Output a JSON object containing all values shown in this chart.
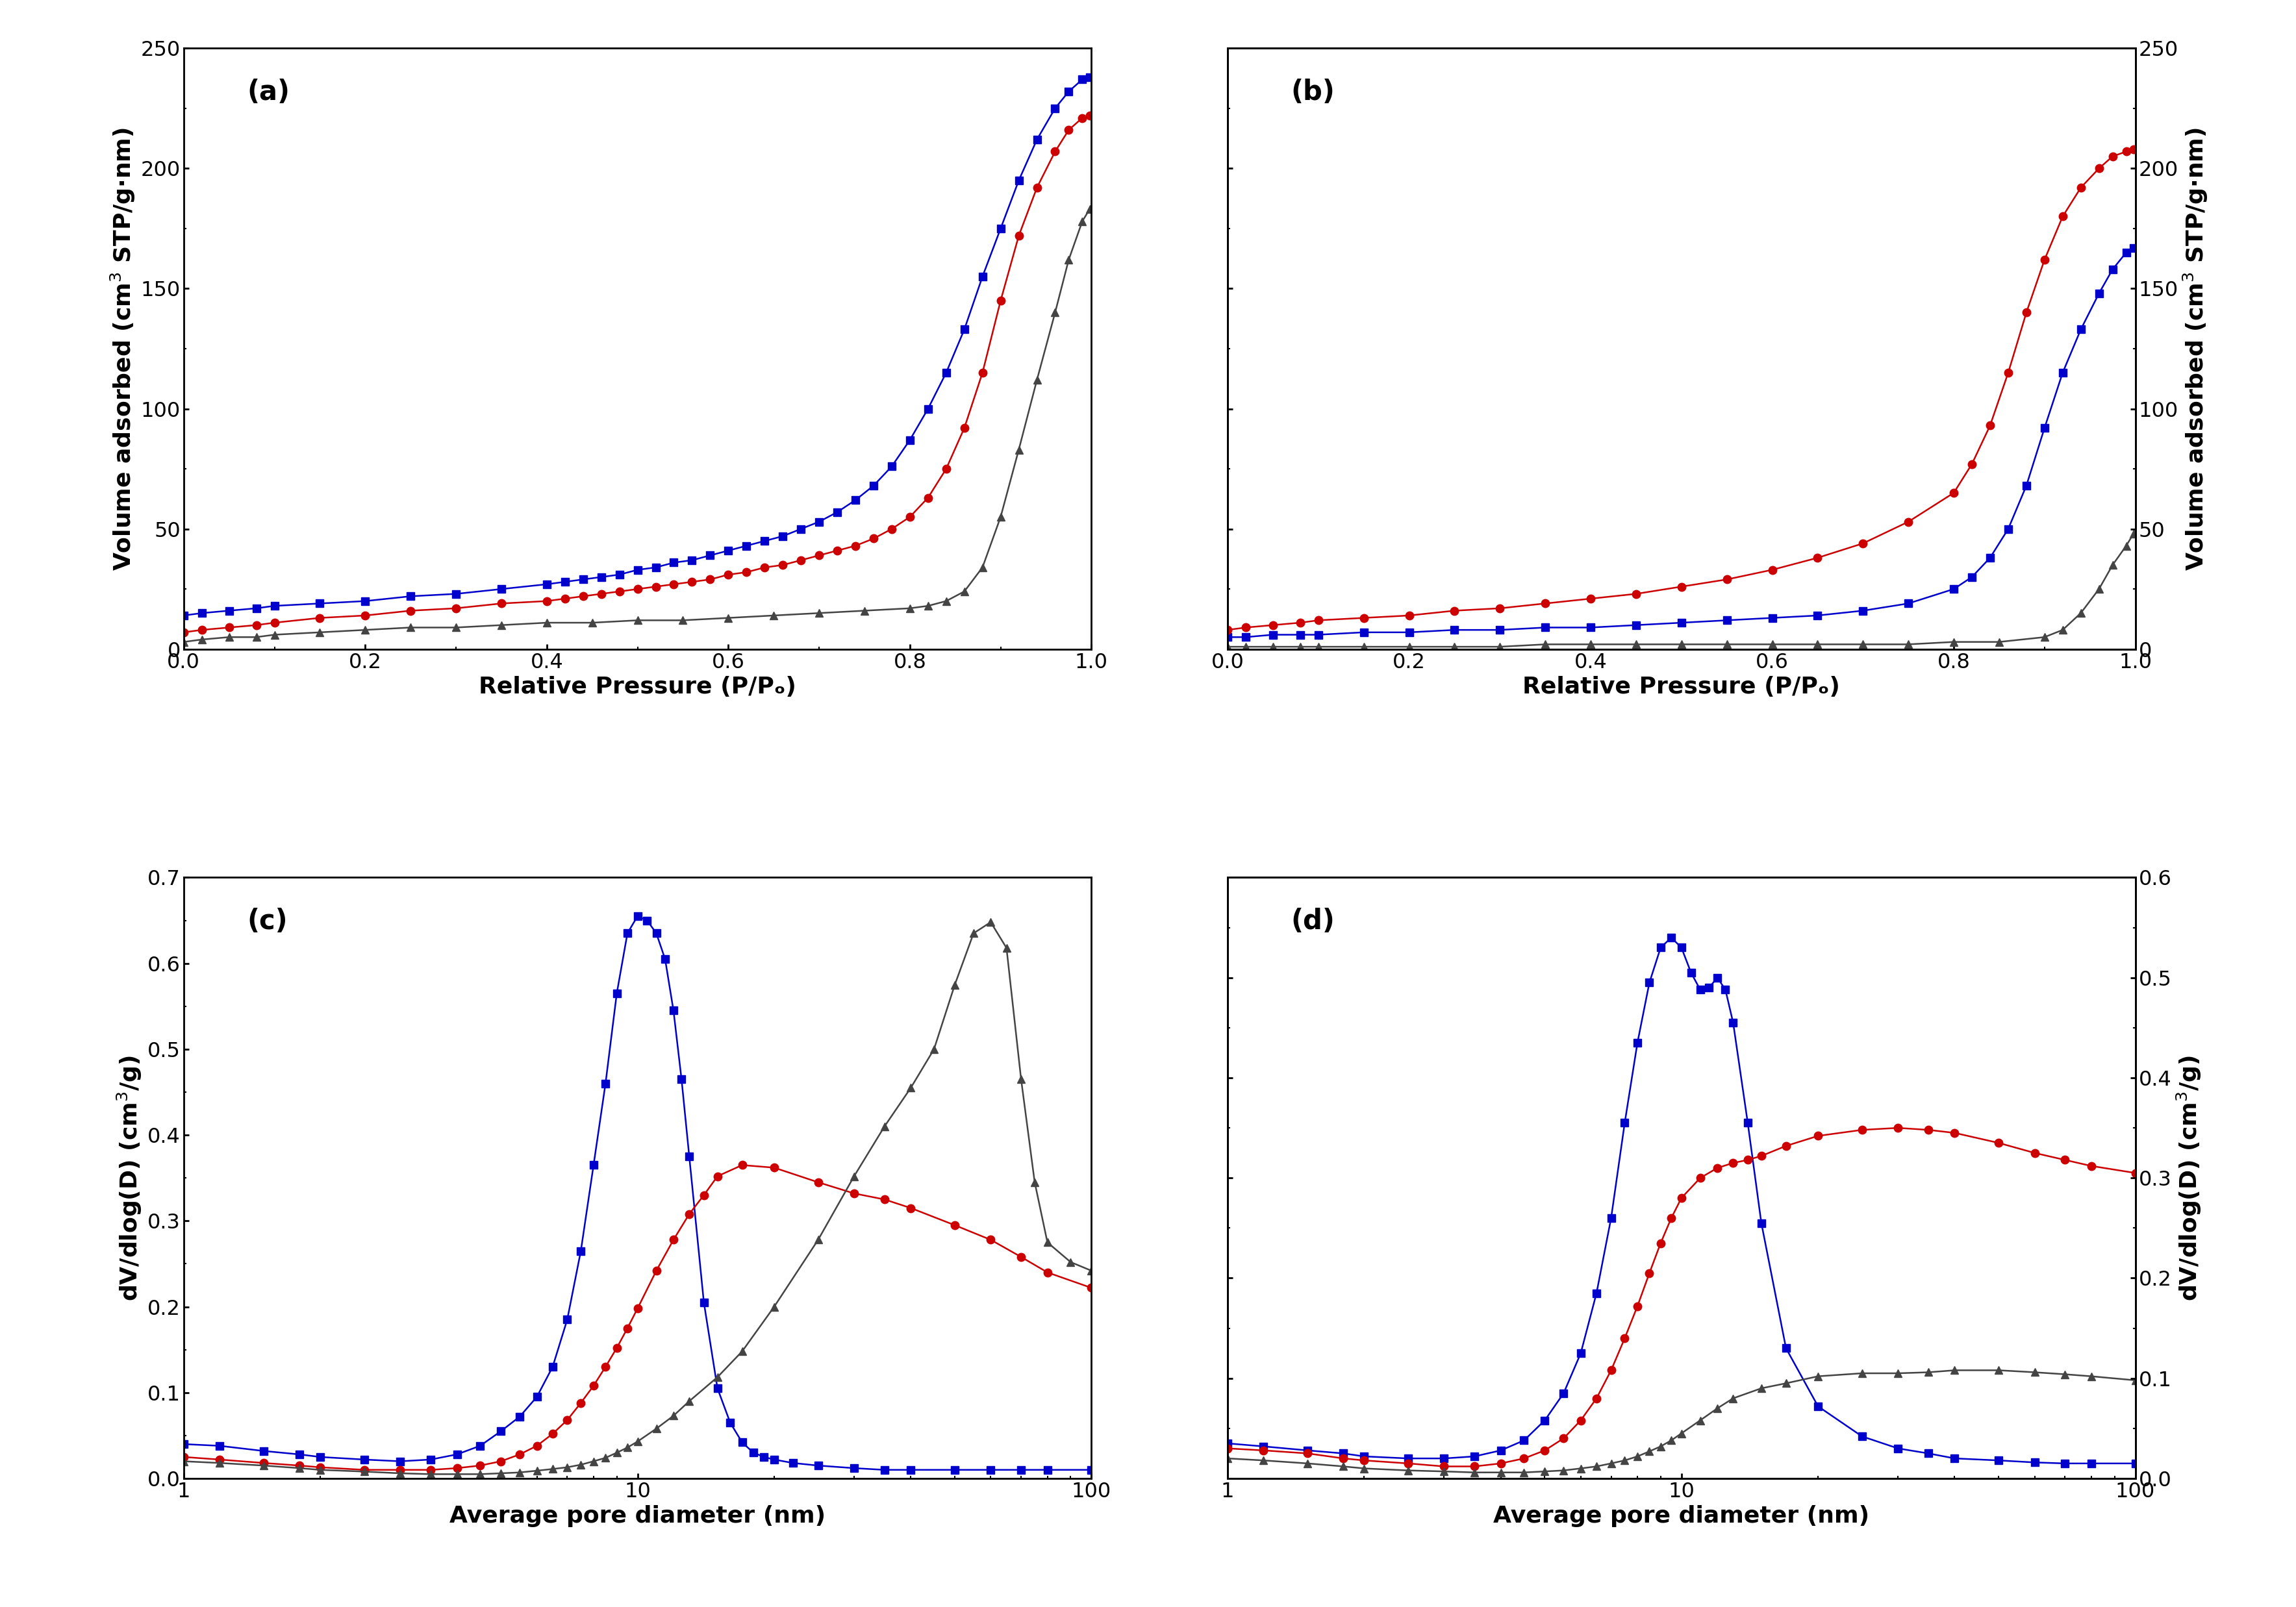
{
  "panel_labels": [
    "(a)",
    "(b)",
    "(c)",
    "(d)"
  ],
  "ax_xlabel_ab": "Relative Pressure (P/Pₒ)",
  "ax_xlabel_cd": "Average pore diameter (nm)",
  "colors": {
    "blue": "#0000cc",
    "red": "#cc0000",
    "gray": "#444444"
  },
  "panel_a": {
    "blue_x": [
      0.0,
      0.02,
      0.05,
      0.08,
      0.1,
      0.15,
      0.2,
      0.25,
      0.3,
      0.35,
      0.4,
      0.42,
      0.44,
      0.46,
      0.48,
      0.5,
      0.52,
      0.54,
      0.56,
      0.58,
      0.6,
      0.62,
      0.64,
      0.66,
      0.68,
      0.7,
      0.72,
      0.74,
      0.76,
      0.78,
      0.8,
      0.82,
      0.84,
      0.86,
      0.88,
      0.9,
      0.92,
      0.94,
      0.96,
      0.975,
      0.99,
      0.998
    ],
    "blue_y": [
      14,
      15,
      16,
      17,
      18,
      19,
      20,
      22,
      23,
      25,
      27,
      28,
      29,
      30,
      31,
      33,
      34,
      36,
      37,
      39,
      41,
      43,
      45,
      47,
      50,
      53,
      57,
      62,
      68,
      76,
      87,
      100,
      115,
      133,
      155,
      175,
      195,
      212,
      225,
      232,
      237,
      238
    ],
    "red_x": [
      0.0,
      0.02,
      0.05,
      0.08,
      0.1,
      0.15,
      0.2,
      0.25,
      0.3,
      0.35,
      0.4,
      0.42,
      0.44,
      0.46,
      0.48,
      0.5,
      0.52,
      0.54,
      0.56,
      0.58,
      0.6,
      0.62,
      0.64,
      0.66,
      0.68,
      0.7,
      0.72,
      0.74,
      0.76,
      0.78,
      0.8,
      0.82,
      0.84,
      0.86,
      0.88,
      0.9,
      0.92,
      0.94,
      0.96,
      0.975,
      0.99,
      0.998
    ],
    "red_y": [
      7,
      8,
      9,
      10,
      11,
      13,
      14,
      16,
      17,
      19,
      20,
      21,
      22,
      23,
      24,
      25,
      26,
      27,
      28,
      29,
      31,
      32,
      34,
      35,
      37,
      39,
      41,
      43,
      46,
      50,
      55,
      63,
      75,
      92,
      115,
      145,
      172,
      192,
      207,
      216,
      221,
      222
    ],
    "gray_x": [
      0.0,
      0.02,
      0.05,
      0.08,
      0.1,
      0.15,
      0.2,
      0.25,
      0.3,
      0.35,
      0.4,
      0.45,
      0.5,
      0.55,
      0.6,
      0.65,
      0.7,
      0.75,
      0.8,
      0.82,
      0.84,
      0.86,
      0.88,
      0.9,
      0.92,
      0.94,
      0.96,
      0.975,
      0.99,
      0.998
    ],
    "gray_y": [
      3,
      4,
      5,
      5,
      6,
      7,
      8,
      9,
      9,
      10,
      11,
      11,
      12,
      12,
      13,
      14,
      15,
      16,
      17,
      18,
      20,
      24,
      34,
      55,
      83,
      112,
      140,
      162,
      178,
      183
    ],
    "ylim": [
      0,
      250
    ],
    "xlim": [
      0.0,
      1.0
    ],
    "yticks": [
      0,
      50,
      100,
      150,
      200,
      250
    ]
  },
  "panel_b": {
    "blue_x": [
      0.0,
      0.02,
      0.05,
      0.08,
      0.1,
      0.15,
      0.2,
      0.25,
      0.3,
      0.35,
      0.4,
      0.45,
      0.5,
      0.55,
      0.6,
      0.65,
      0.7,
      0.75,
      0.8,
      0.82,
      0.84,
      0.86,
      0.88,
      0.9,
      0.92,
      0.94,
      0.96,
      0.975,
      0.99,
      0.998
    ],
    "blue_y": [
      5,
      5,
      6,
      6,
      6,
      7,
      7,
      8,
      8,
      9,
      9,
      10,
      11,
      12,
      13,
      14,
      16,
      19,
      25,
      30,
      38,
      50,
      68,
      92,
      115,
      133,
      148,
      158,
      165,
      167
    ],
    "red_x": [
      0.0,
      0.02,
      0.05,
      0.08,
      0.1,
      0.15,
      0.2,
      0.25,
      0.3,
      0.35,
      0.4,
      0.45,
      0.5,
      0.55,
      0.6,
      0.65,
      0.7,
      0.75,
      0.8,
      0.82,
      0.84,
      0.86,
      0.88,
      0.9,
      0.92,
      0.94,
      0.96,
      0.975,
      0.99,
      0.998
    ],
    "red_y": [
      8,
      9,
      10,
      11,
      12,
      13,
      14,
      16,
      17,
      19,
      21,
      23,
      26,
      29,
      33,
      38,
      44,
      53,
      65,
      77,
      93,
      115,
      140,
      162,
      180,
      192,
      200,
      205,
      207,
      208
    ],
    "gray_x": [
      0.0,
      0.02,
      0.05,
      0.08,
      0.1,
      0.15,
      0.2,
      0.25,
      0.3,
      0.35,
      0.4,
      0.45,
      0.5,
      0.55,
      0.6,
      0.65,
      0.7,
      0.75,
      0.8,
      0.85,
      0.9,
      0.92,
      0.94,
      0.96,
      0.975,
      0.99,
      0.998
    ],
    "gray_y": [
      1,
      1,
      1,
      1,
      1,
      1,
      1,
      1,
      1,
      2,
      2,
      2,
      2,
      2,
      2,
      2,
      2,
      2,
      3,
      3,
      5,
      8,
      15,
      25,
      35,
      43,
      48
    ],
    "ylim": [
      0,
      250
    ],
    "xlim": [
      0.0,
      1.0
    ],
    "yticks": [
      0,
      50,
      100,
      150,
      200,
      250
    ]
  },
  "panel_c": {
    "blue_x": [
      1.0,
      1.2,
      1.5,
      1.8,
      2.0,
      2.5,
      3.0,
      3.5,
      4.0,
      4.5,
      5.0,
      5.5,
      6.0,
      6.5,
      7.0,
      7.5,
      8.0,
      8.5,
      9.0,
      9.5,
      10.0,
      10.5,
      11.0,
      11.5,
      12.0,
      12.5,
      13.0,
      14.0,
      15.0,
      16.0,
      17.0,
      18.0,
      19.0,
      20.0,
      22.0,
      25.0,
      30.0,
      35.0,
      40.0,
      50.0,
      60.0,
      70.0,
      80.0,
      100.0
    ],
    "blue_y": [
      0.04,
      0.038,
      0.032,
      0.028,
      0.025,
      0.022,
      0.02,
      0.022,
      0.028,
      0.038,
      0.055,
      0.072,
      0.095,
      0.13,
      0.185,
      0.265,
      0.365,
      0.46,
      0.565,
      0.635,
      0.655,
      0.65,
      0.635,
      0.605,
      0.545,
      0.465,
      0.375,
      0.205,
      0.105,
      0.065,
      0.042,
      0.03,
      0.025,
      0.022,
      0.018,
      0.015,
      0.012,
      0.01,
      0.01,
      0.01,
      0.01,
      0.01,
      0.01,
      0.01
    ],
    "red_x": [
      1.0,
      1.2,
      1.5,
      1.8,
      2.0,
      2.5,
      3.0,
      3.5,
      4.0,
      4.5,
      5.0,
      5.5,
      6.0,
      6.5,
      7.0,
      7.5,
      8.0,
      8.5,
      9.0,
      9.5,
      10.0,
      11.0,
      12.0,
      13.0,
      14.0,
      15.0,
      17.0,
      20.0,
      25.0,
      30.0,
      35.0,
      40.0,
      50.0,
      60.0,
      70.0,
      80.0,
      100.0
    ],
    "red_y": [
      0.025,
      0.022,
      0.018,
      0.015,
      0.013,
      0.01,
      0.01,
      0.01,
      0.012,
      0.015,
      0.02,
      0.028,
      0.038,
      0.052,
      0.068,
      0.088,
      0.108,
      0.13,
      0.152,
      0.175,
      0.198,
      0.242,
      0.278,
      0.308,
      0.33,
      0.352,
      0.365,
      0.362,
      0.345,
      0.332,
      0.325,
      0.315,
      0.295,
      0.278,
      0.258,
      0.24,
      0.222
    ],
    "gray_x": [
      1.0,
      1.2,
      1.5,
      1.8,
      2.0,
      2.5,
      3.0,
      3.5,
      4.0,
      4.5,
      5.0,
      5.5,
      6.0,
      6.5,
      7.0,
      7.5,
      8.0,
      8.5,
      9.0,
      9.5,
      10.0,
      11.0,
      12.0,
      13.0,
      15.0,
      17.0,
      20.0,
      25.0,
      30.0,
      35.0,
      40.0,
      45.0,
      50.0,
      55.0,
      60.0,
      65.0,
      70.0,
      75.0,
      80.0,
      90.0,
      100.0
    ],
    "gray_y": [
      0.02,
      0.018,
      0.015,
      0.012,
      0.01,
      0.008,
      0.006,
      0.005,
      0.005,
      0.005,
      0.006,
      0.007,
      0.009,
      0.011,
      0.013,
      0.016,
      0.02,
      0.024,
      0.03,
      0.036,
      0.043,
      0.058,
      0.073,
      0.09,
      0.118,
      0.148,
      0.2,
      0.278,
      0.352,
      0.41,
      0.455,
      0.5,
      0.575,
      0.635,
      0.648,
      0.618,
      0.465,
      0.345,
      0.275,
      0.252,
      0.242
    ],
    "ylim": [
      0.0,
      0.7
    ],
    "xlim": [
      1.0,
      100.0
    ],
    "yticks": [
      0.0,
      0.1,
      0.2,
      0.3,
      0.4,
      0.5,
      0.6,
      0.7
    ]
  },
  "panel_d": {
    "blue_x": [
      1.0,
      1.2,
      1.5,
      1.8,
      2.0,
      2.5,
      3.0,
      3.5,
      4.0,
      4.5,
      5.0,
      5.5,
      6.0,
      6.5,
      7.0,
      7.5,
      8.0,
      8.5,
      9.0,
      9.5,
      10.0,
      10.5,
      11.0,
      11.5,
      12.0,
      12.5,
      13.0,
      14.0,
      15.0,
      17.0,
      20.0,
      25.0,
      30.0,
      35.0,
      40.0,
      50.0,
      60.0,
      70.0,
      80.0,
      100.0
    ],
    "blue_y": [
      0.035,
      0.032,
      0.028,
      0.025,
      0.022,
      0.02,
      0.02,
      0.022,
      0.028,
      0.038,
      0.058,
      0.085,
      0.125,
      0.185,
      0.26,
      0.355,
      0.435,
      0.495,
      0.53,
      0.54,
      0.53,
      0.505,
      0.488,
      0.49,
      0.5,
      0.488,
      0.455,
      0.355,
      0.255,
      0.13,
      0.072,
      0.042,
      0.03,
      0.025,
      0.02,
      0.018,
      0.016,
      0.015,
      0.015,
      0.015
    ],
    "red_x": [
      1.0,
      1.2,
      1.5,
      1.8,
      2.0,
      2.5,
      3.0,
      3.5,
      4.0,
      4.5,
      5.0,
      5.5,
      6.0,
      6.5,
      7.0,
      7.5,
      8.0,
      8.5,
      9.0,
      9.5,
      10.0,
      11.0,
      12.0,
      13.0,
      14.0,
      15.0,
      17.0,
      20.0,
      25.0,
      30.0,
      35.0,
      40.0,
      50.0,
      60.0,
      70.0,
      80.0,
      100.0
    ],
    "red_y": [
      0.03,
      0.028,
      0.025,
      0.02,
      0.018,
      0.015,
      0.012,
      0.012,
      0.015,
      0.02,
      0.028,
      0.04,
      0.058,
      0.08,
      0.108,
      0.14,
      0.172,
      0.205,
      0.235,
      0.26,
      0.28,
      0.3,
      0.31,
      0.315,
      0.318,
      0.322,
      0.332,
      0.342,
      0.348,
      0.35,
      0.348,
      0.345,
      0.335,
      0.325,
      0.318,
      0.312,
      0.305
    ],
    "gray_x": [
      1.0,
      1.2,
      1.5,
      1.8,
      2.0,
      2.5,
      3.0,
      3.5,
      4.0,
      4.5,
      5.0,
      5.5,
      6.0,
      6.5,
      7.0,
      7.5,
      8.0,
      8.5,
      9.0,
      9.5,
      10.0,
      11.0,
      12.0,
      13.0,
      15.0,
      17.0,
      20.0,
      25.0,
      30.0,
      35.0,
      40.0,
      50.0,
      60.0,
      70.0,
      80.0,
      100.0
    ],
    "gray_y": [
      0.02,
      0.018,
      0.015,
      0.012,
      0.01,
      0.008,
      0.007,
      0.006,
      0.006,
      0.006,
      0.007,
      0.008,
      0.01,
      0.012,
      0.015,
      0.018,
      0.022,
      0.027,
      0.032,
      0.038,
      0.045,
      0.058,
      0.07,
      0.08,
      0.09,
      0.095,
      0.102,
      0.105,
      0.105,
      0.106,
      0.108,
      0.108,
      0.106,
      0.104,
      0.102,
      0.098
    ],
    "ylim": [
      0.0,
      0.6
    ],
    "xlim": [
      1.0,
      100.0
    ],
    "yticks": [
      0.0,
      0.1,
      0.2,
      0.3,
      0.4,
      0.5,
      0.6
    ]
  }
}
